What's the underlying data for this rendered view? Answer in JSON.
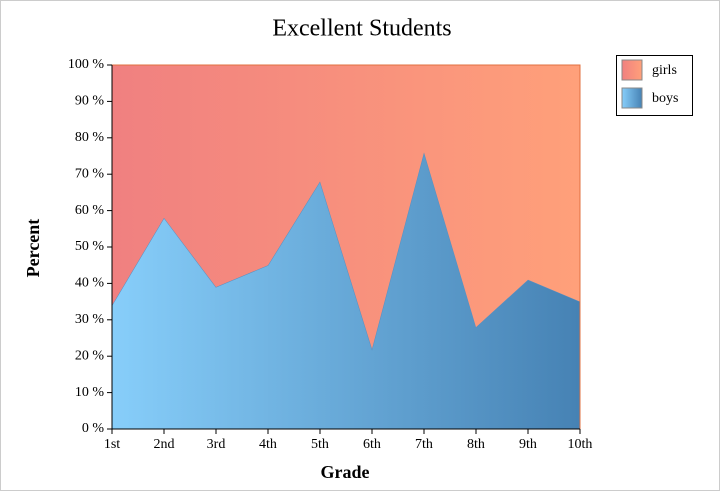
{
  "chart_data": {
    "type": "stacked_area",
    "title": "Excellent Students",
    "x_label": "Grade",
    "y_label": "Percent",
    "categories": [
      "1st",
      "2nd",
      "3rd",
      "4th",
      "5th",
      "6th",
      "7th",
      "8th",
      "9th",
      "10th"
    ],
    "series": [
      {
        "name": "boys",
        "color": [
          "#87cefa",
          "#4682b4"
        ],
        "values": [
          34,
          58,
          39,
          45,
          68,
          22,
          76,
          28,
          41,
          35
        ]
      },
      {
        "name": "girls",
        "color": [
          "#f08080",
          "#ffa07a"
        ],
        "values": [
          66,
          42,
          61,
          55,
          32,
          78,
          24,
          72,
          59,
          65
        ]
      }
    ],
    "ylim": [
      0,
      100
    ],
    "yticks": [
      {
        "value": 0,
        "label": "0 %"
      },
      {
        "value": 10,
        "label": "10 %"
      },
      {
        "value": 20,
        "label": "20 %"
      },
      {
        "value": 30,
        "label": "30 %"
      },
      {
        "value": 40,
        "label": "40 %"
      },
      {
        "value": 50,
        "label": "50 %"
      },
      {
        "value": 60,
        "label": "60 %"
      },
      {
        "value": 70,
        "label": "70 %"
      },
      {
        "value": 80,
        "label": "80 %"
      },
      {
        "value": 90,
        "label": "90 %"
      },
      {
        "value": 100,
        "label": "100 %"
      }
    ],
    "legend": "top-right"
  }
}
